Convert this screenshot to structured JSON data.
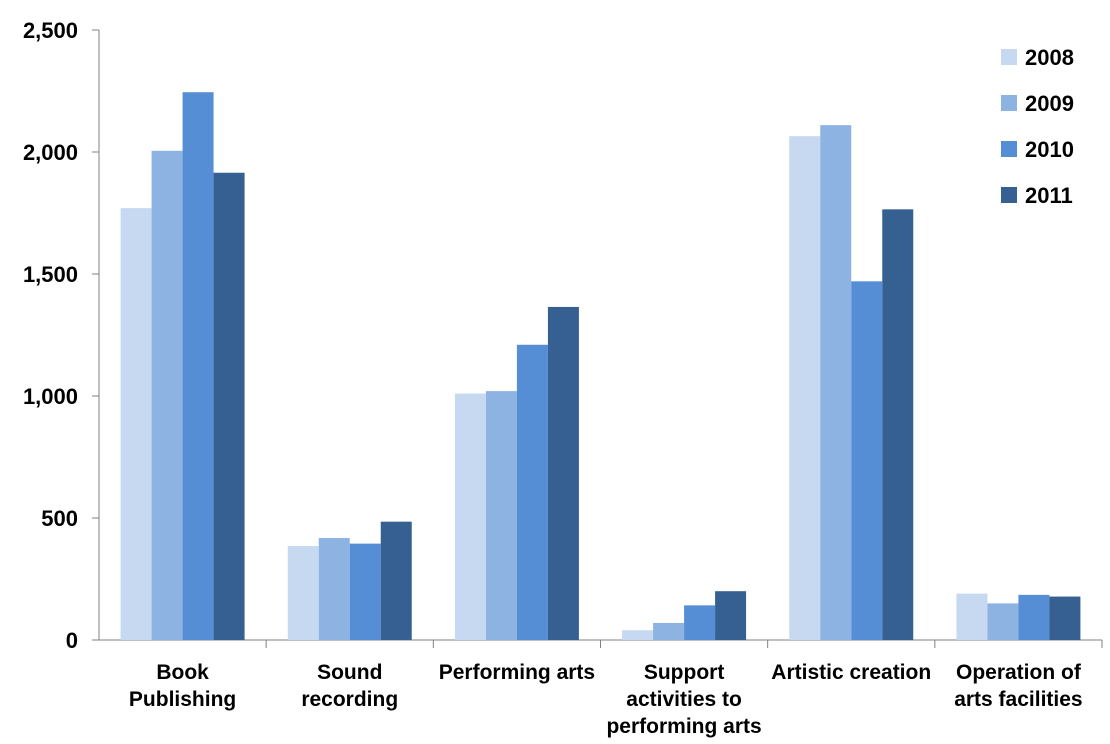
{
  "chart_data": {
    "type": "bar",
    "title": "",
    "xlabel": "",
    "ylabel": "",
    "ylim": [
      0,
      2500
    ],
    "yticks": [
      0,
      500,
      1000,
      1500,
      2000,
      2500
    ],
    "ytick_labels": [
      "0",
      "500",
      "1,000",
      "1,500",
      "2,000",
      "2,500"
    ],
    "grid": false,
    "legend_position": "top-right",
    "categories": [
      "Book Publishing",
      "Sound recording",
      "Performing arts",
      "Support activities to performing arts",
      "Artistic creation",
      "Operation of arts facilities"
    ],
    "category_label_lines": [
      [
        "Book",
        "Publishing"
      ],
      [
        "Sound",
        "recording"
      ],
      [
        "Performing arts"
      ],
      [
        "Support",
        "activities to",
        "performing arts"
      ],
      [
        "Artistic creation"
      ],
      [
        "Operation of",
        "arts facilities"
      ]
    ],
    "series": [
      {
        "name": "2008",
        "color": "#c6d9f1",
        "values": [
          1770,
          385,
          1010,
          40,
          2065,
          190
        ]
      },
      {
        "name": "2009",
        "color": "#8db3e2",
        "values": [
          2005,
          418,
          1020,
          70,
          2110,
          150
        ]
      },
      {
        "name": "2010",
        "color": "#558ed5",
        "values": [
          2245,
          395,
          1210,
          142,
          1470,
          185
        ]
      },
      {
        "name": "2011",
        "color": "#376092",
        "values": [
          1915,
          485,
          1365,
          200,
          1765,
          178
        ]
      }
    ]
  }
}
